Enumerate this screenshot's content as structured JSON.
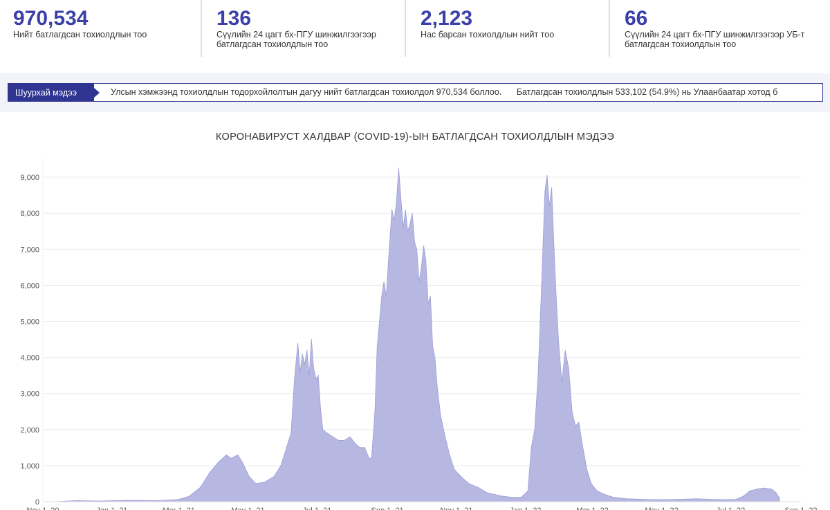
{
  "stats": [
    {
      "value": "970,534",
      "label1": "Нийт батлагдсан тохиолдлын тоо",
      "label2": ""
    },
    {
      "value": "136",
      "label1": "Сүүлийн 24 цагт бх-ПГУ шинжилгээгээр",
      "label2": "батлагдсан тохиолдлын тоо"
    },
    {
      "value": "2,123",
      "label1": "Нас барсан тохиолдлын нийт тоо",
      "label2": ""
    },
    {
      "value": "66",
      "label1": "Сүүлийн 24 цагт бх-ПГУ шинжилгээгээр УБ-т",
      "label2": "батлагдсан тохиолдлын тоо"
    }
  ],
  "ticker": {
    "tag": "Шуурхай мэдээ",
    "messages": [
      "Улсын хэмжээнд тохиолдлын тодорхойлолтын дагуу нийт батлагдсан тохиолдол 970,534 боллоо.",
      "Батлагдсан тохиолдлын 533,102 (54.9%) нь Улаанбаатар хотод б"
    ]
  },
  "colors": {
    "accent": "#3b3fa8",
    "area": "#b7b8e2",
    "area_line": "#9c9ed6",
    "grid": "#ececec"
  },
  "chart_data": {
    "type": "area",
    "title": "КОРОНАВИРУСТ ХАЛДВАР (COVID-19)-ЫН БАТЛАГДСАН ТОХИОЛДЛЫН МЭДЭЭ",
    "xlabel": "",
    "ylabel": "",
    "ylim": [
      0,
      9500
    ],
    "yticks": [
      0,
      1000,
      2000,
      3000,
      4000,
      5000,
      6000,
      7000,
      8000,
      9000
    ],
    "ytick_labels": [
      "0",
      "1,000",
      "2,000",
      "3,000",
      "4,000",
      "5,000",
      "6,000",
      "7,000",
      "8,000",
      "9,000"
    ],
    "xlim": [
      "2020-11-01",
      "2022-09-01"
    ],
    "xticks": [
      {
        "date": "2020-11-01",
        "label": "Nov 1, 20"
      },
      {
        "date": "2021-01-01",
        "label": "Jan 1, 21"
      },
      {
        "date": "2021-03-01",
        "label": "Mar 1, 21"
      },
      {
        "date": "2021-05-01",
        "label": "May 1, 21"
      },
      {
        "date": "2021-07-01",
        "label": "Jul 1, 21"
      },
      {
        "date": "2021-09-01",
        "label": "Sep 1, 21"
      },
      {
        "date": "2021-11-01",
        "label": "Nov 1, 21"
      },
      {
        "date": "2022-01-01",
        "label": "Jan 1, 22"
      },
      {
        "date": "2022-03-01",
        "label": "Mar 1, 22"
      },
      {
        "date": "2022-05-01",
        "label": "May 1, 22"
      },
      {
        "date": "2022-07-01",
        "label": "Jul 1, 22"
      },
      {
        "date": "2022-09-01",
        "label": "Sep 1, 22"
      }
    ],
    "grid": true,
    "series": [
      {
        "points": [
          [
            "2020-11-12",
            0
          ],
          [
            "2020-12-01",
            30
          ],
          [
            "2020-12-20",
            20
          ],
          [
            "2021-01-15",
            40
          ],
          [
            "2021-02-10",
            30
          ],
          [
            "2021-02-28",
            60
          ],
          [
            "2021-03-10",
            150
          ],
          [
            "2021-03-20",
            400
          ],
          [
            "2021-03-28",
            800
          ],
          [
            "2021-04-05",
            1100
          ],
          [
            "2021-04-12",
            1300
          ],
          [
            "2021-04-16",
            1200
          ],
          [
            "2021-04-22",
            1300
          ],
          [
            "2021-04-26",
            1100
          ],
          [
            "2021-05-02",
            700
          ],
          [
            "2021-05-08",
            500
          ],
          [
            "2021-05-16",
            550
          ],
          [
            "2021-05-24",
            700
          ],
          [
            "2021-05-30",
            1000
          ],
          [
            "2021-06-04",
            1500
          ],
          [
            "2021-06-08",
            1900
          ],
          [
            "2021-06-11",
            3400
          ],
          [
            "2021-06-14",
            4400
          ],
          [
            "2021-06-16",
            3600
          ],
          [
            "2021-06-18",
            4100
          ],
          [
            "2021-06-20",
            3800
          ],
          [
            "2021-06-22",
            4200
          ],
          [
            "2021-06-24",
            3500
          ],
          [
            "2021-06-26",
            4500
          ],
          [
            "2021-06-28",
            3700
          ],
          [
            "2021-06-30",
            3400
          ],
          [
            "2021-07-02",
            3500
          ],
          [
            "2021-07-04",
            2600
          ],
          [
            "2021-07-06",
            2000
          ],
          [
            "2021-07-10",
            1900
          ],
          [
            "2021-07-15",
            1800
          ],
          [
            "2021-07-20",
            1700
          ],
          [
            "2021-07-25",
            1700
          ],
          [
            "2021-07-30",
            1800
          ],
          [
            "2021-08-04",
            1600
          ],
          [
            "2021-08-08",
            1500
          ],
          [
            "2021-08-12",
            1500
          ],
          [
            "2021-08-16",
            1200
          ],
          [
            "2021-08-18",
            1200
          ],
          [
            "2021-08-21",
            2500
          ],
          [
            "2021-08-23",
            4300
          ],
          [
            "2021-08-25",
            5000
          ],
          [
            "2021-08-27",
            5700
          ],
          [
            "2021-08-29",
            6100
          ],
          [
            "2021-08-31",
            5700
          ],
          [
            "2021-09-02",
            6700
          ],
          [
            "2021-09-05",
            8100
          ],
          [
            "2021-09-07",
            7800
          ],
          [
            "2021-09-09",
            8300
          ],
          [
            "2021-09-11",
            9250
          ],
          [
            "2021-09-13",
            8400
          ],
          [
            "2021-09-15",
            7600
          ],
          [
            "2021-09-17",
            8100
          ],
          [
            "2021-09-19",
            7500
          ],
          [
            "2021-09-21",
            7700
          ],
          [
            "2021-09-23",
            8000
          ],
          [
            "2021-09-25",
            7200
          ],
          [
            "2021-09-27",
            7000
          ],
          [
            "2021-09-29",
            6100
          ],
          [
            "2021-10-01",
            6500
          ],
          [
            "2021-10-03",
            7100
          ],
          [
            "2021-10-05",
            6700
          ],
          [
            "2021-10-07",
            5500
          ],
          [
            "2021-10-09",
            5700
          ],
          [
            "2021-10-11",
            4300
          ],
          [
            "2021-10-13",
            4000
          ],
          [
            "2021-10-15",
            3200
          ],
          [
            "2021-10-18",
            2400
          ],
          [
            "2021-10-22",
            1800
          ],
          [
            "2021-10-26",
            1300
          ],
          [
            "2021-10-30",
            900
          ],
          [
            "2021-11-05",
            700
          ],
          [
            "2021-11-12",
            500
          ],
          [
            "2021-11-20",
            400
          ],
          [
            "2021-11-28",
            250
          ],
          [
            "2021-12-05",
            200
          ],
          [
            "2021-12-12",
            150
          ],
          [
            "2021-12-20",
            120
          ],
          [
            "2021-12-28",
            120
          ],
          [
            "2022-01-03",
            300
          ],
          [
            "2022-01-06",
            1500
          ],
          [
            "2022-01-09",
            2000
          ],
          [
            "2022-01-12",
            3500
          ],
          [
            "2022-01-15",
            5900
          ],
          [
            "2022-01-18",
            8600
          ],
          [
            "2022-01-20",
            9050
          ],
          [
            "2022-01-22",
            8200
          ],
          [
            "2022-01-24",
            8700
          ],
          [
            "2022-01-26",
            7100
          ],
          [
            "2022-01-28",
            5700
          ],
          [
            "2022-01-30",
            4500
          ],
          [
            "2022-02-02",
            3300
          ],
          [
            "2022-02-05",
            4200
          ],
          [
            "2022-02-08",
            3700
          ],
          [
            "2022-02-11",
            2500
          ],
          [
            "2022-02-14",
            2100
          ],
          [
            "2022-02-17",
            2200
          ],
          [
            "2022-02-20",
            1600
          ],
          [
            "2022-02-24",
            900
          ],
          [
            "2022-02-28",
            500
          ],
          [
            "2022-03-05",
            300
          ],
          [
            "2022-03-12",
            200
          ],
          [
            "2022-03-20",
            120
          ],
          [
            "2022-04-01",
            80
          ],
          [
            "2022-04-20",
            60
          ],
          [
            "2022-05-10",
            60
          ],
          [
            "2022-06-01",
            80
          ],
          [
            "2022-06-20",
            60
          ],
          [
            "2022-07-05",
            60
          ],
          [
            "2022-07-12",
            150
          ],
          [
            "2022-07-18",
            300
          ],
          [
            "2022-07-24",
            350
          ],
          [
            "2022-07-30",
            380
          ],
          [
            "2022-08-06",
            350
          ],
          [
            "2022-08-10",
            250
          ],
          [
            "2022-08-13",
            100
          ]
        ]
      }
    ]
  }
}
